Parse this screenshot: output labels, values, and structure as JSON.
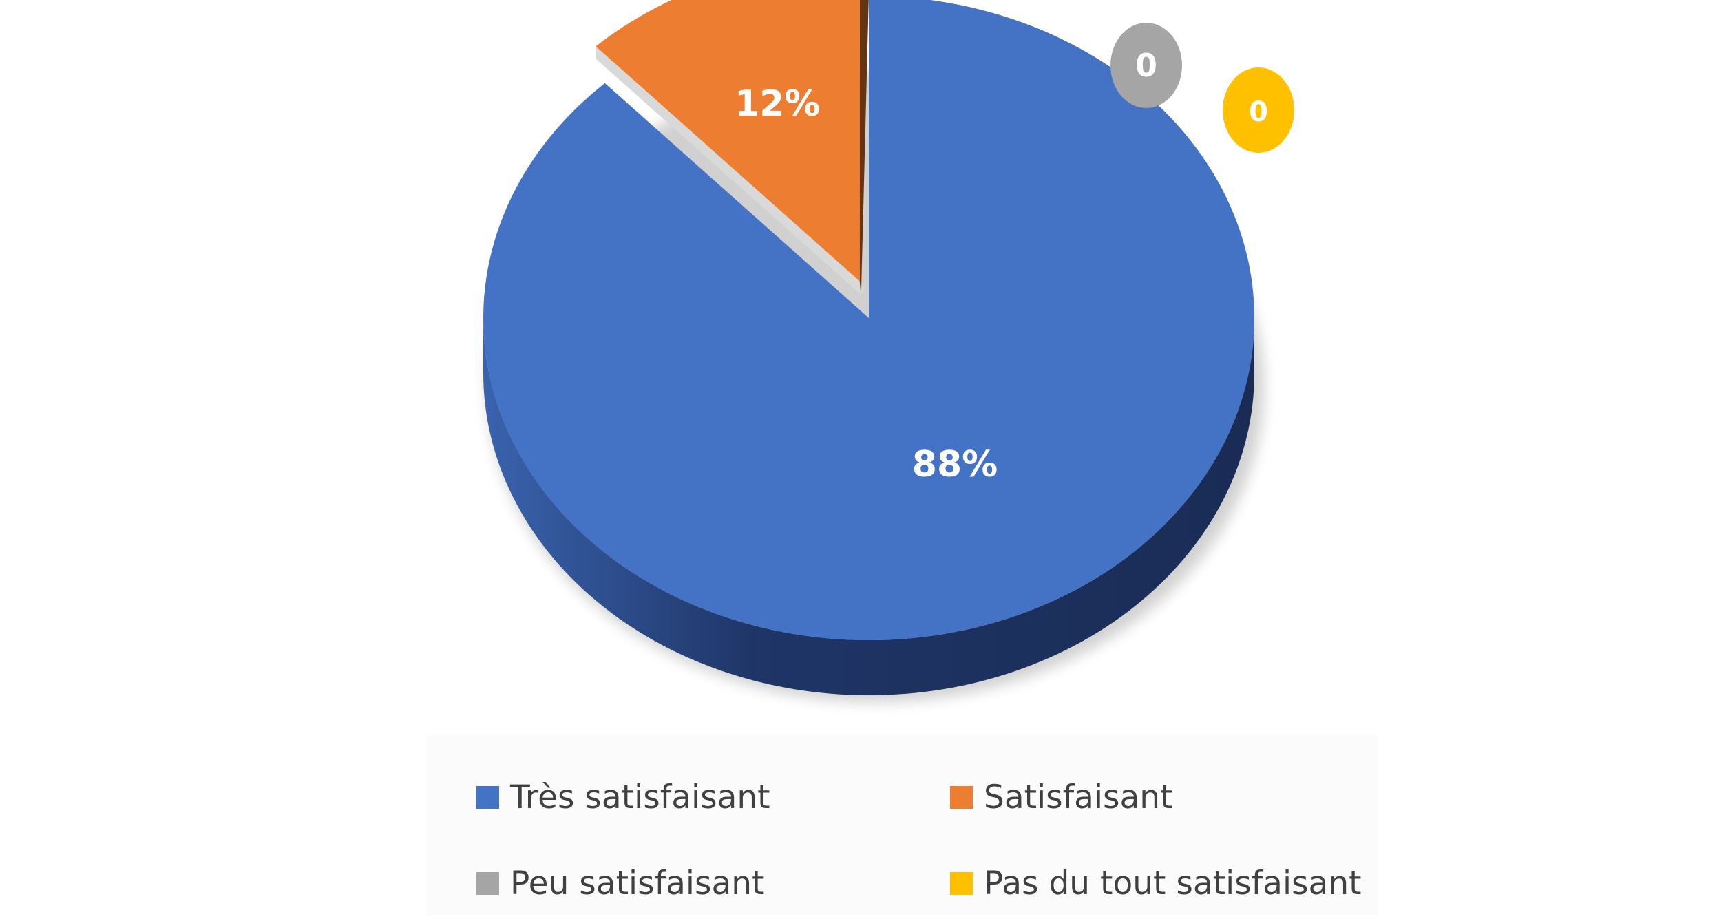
{
  "chart_data": {
    "type": "pie",
    "style": "3d-exploded",
    "categories": [
      "Très satisfaisant",
      "Satisfaisant",
      "Peu satisfaisant",
      "Pas du tout satisfaisant"
    ],
    "values": [
      88,
      12,
      0,
      0
    ],
    "data_labels": [
      "88%",
      "12%",
      "0",
      "0"
    ],
    "colors": [
      "#4472C4",
      "#ED7D31",
      "#A5A5A5",
      "#FFC000"
    ],
    "legend_position": "bottom"
  }
}
